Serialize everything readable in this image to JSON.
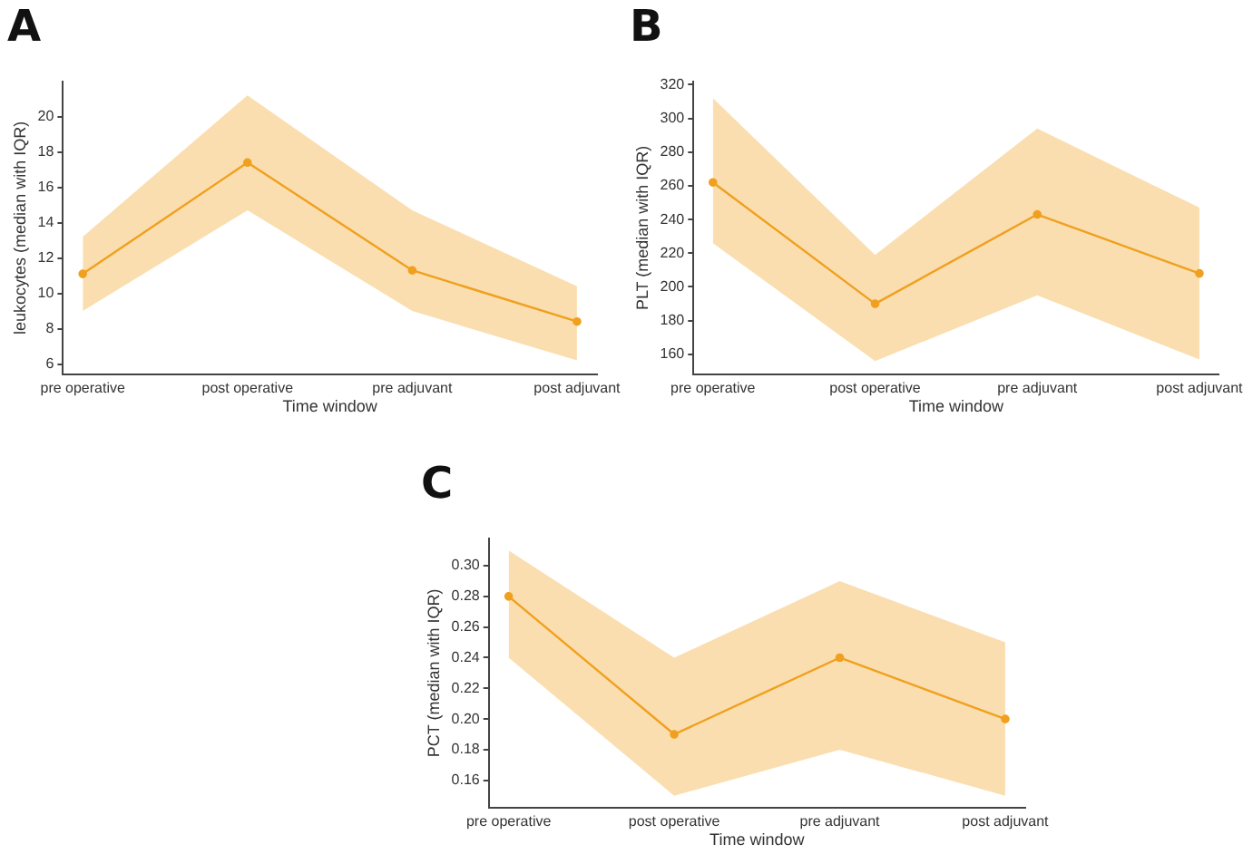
{
  "chart_data": [
    {
      "type": "line",
      "title": "A",
      "xlabel": "Time window",
      "ylabel": "leukocytes (median with IQR)",
      "categories": [
        "pre operative",
        "post operative",
        "pre adjuvant",
        "post adjuvant"
      ],
      "marker": "circle",
      "ylim": [
        5.4,
        22
      ],
      "yticks": [
        6,
        8,
        10,
        12,
        14,
        16,
        18,
        20
      ],
      "series": [
        {
          "color": "#f0a01e",
          "values": [
            11.1,
            17.4,
            11.3,
            8.4
          ],
          "lower": [
            9.0,
            14.7,
            9.0,
            6.2
          ],
          "upper": [
            13.2,
            21.2,
            14.7,
            10.4
          ]
        }
      ]
    },
    {
      "type": "line",
      "title": "B",
      "xlabel": "Time window",
      "ylabel": "PLT (median with IQR)",
      "categories": [
        "pre operative",
        "post operative",
        "pre adjuvant",
        "post adjuvant"
      ],
      "marker": "circle",
      "ylim": [
        148,
        322
      ],
      "yticks": [
        160,
        180,
        200,
        220,
        240,
        260,
        280,
        300,
        320
      ],
      "series": [
        {
          "color": "#f0a01e",
          "values": [
            262,
            190,
            243,
            208
          ],
          "lower": [
            226,
            156,
            195,
            157
          ],
          "upper": [
            312,
            219,
            294,
            247
          ]
        }
      ]
    },
    {
      "type": "line",
      "title": "C",
      "xlabel": "Time window",
      "ylabel": "PCT (median with IQR)",
      "categories": [
        "pre operative",
        "post operative",
        "pre adjuvant",
        "post adjuvant"
      ],
      "marker": "circle",
      "ylim": [
        0.142,
        0.318
      ],
      "yticks": [
        0.16,
        0.18,
        {
          "value": 0.2,
          "label": "0.20"
        },
        0.22,
        0.24,
        0.26,
        0.28,
        {
          "value": 0.3,
          "label": "0.30"
        }
      ],
      "series": [
        {
          "color": "#f0a01e",
          "values": [
            0.28,
            0.19,
            0.24,
            0.2
          ],
          "lower": [
            0.24,
            0.15,
            0.18,
            0.15
          ],
          "upper": [
            0.31,
            0.24,
            0.29,
            0.25
          ]
        }
      ]
    }
  ]
}
